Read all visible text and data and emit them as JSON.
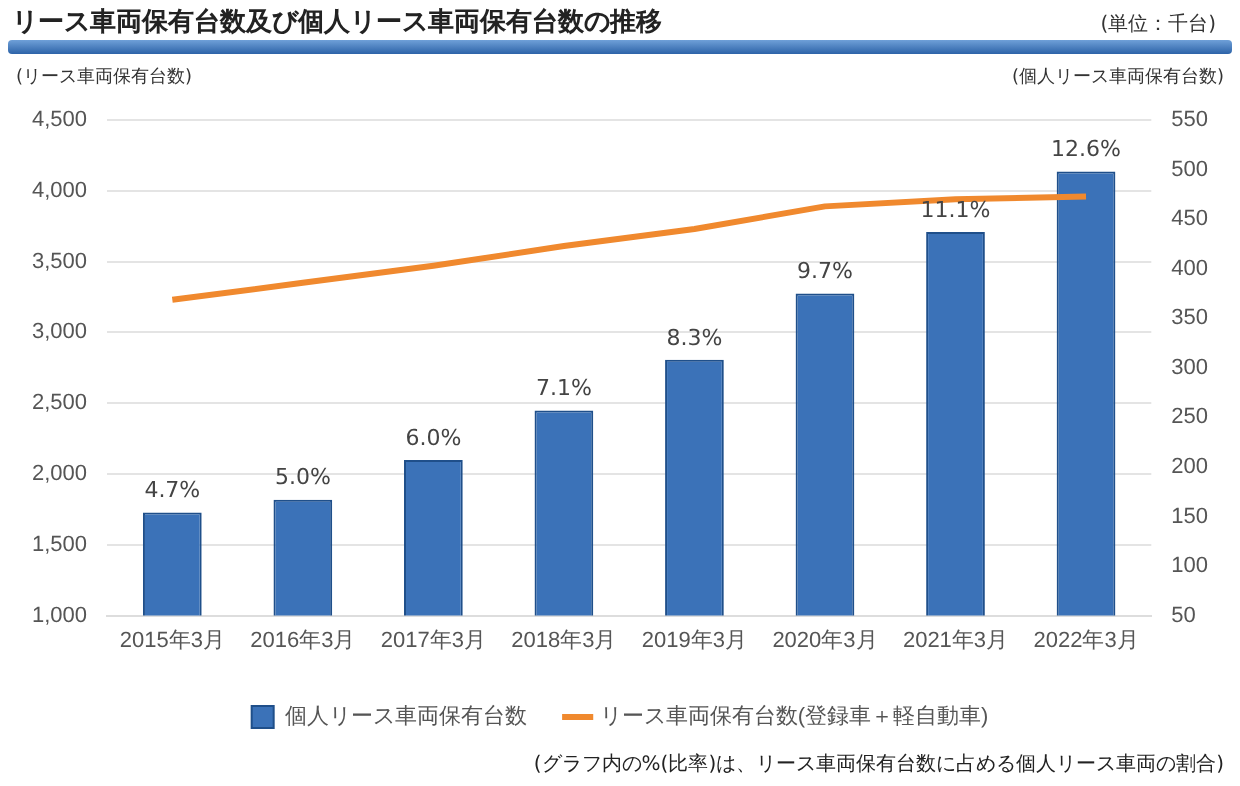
{
  "chart_data": {
    "type": "bar",
    "title": "リース車両保有台数及び個人リース車両保有台数の推移",
    "ylabel": "(リース車両保有台数)",
    "y2label": "(個人リース車両保有台数)",
    "annotations": [
      "(単位：千台)",
      "(グラフ内の%(比率)は、リース車両保有台数に占める個人リース車両の割合)",
      "4.7%",
      "5.0%",
      "6.0%",
      "7.1%",
      "8.3%",
      "9.7%",
      "11.1%",
      "12.6%"
    ],
    "categories": [
      "2015年3月",
      "2016年3月",
      "2017年3月",
      "2018年3月",
      "2019年3月",
      "2020年3月",
      "2021年3月",
      "2022年3月"
    ],
    "series": [
      {
        "name": "個人リース車両保有台数",
        "axis": "y2",
        "color": "#3b72b8",
        "values": [
          154,
          167,
          207,
          257,
          308,
          375,
          437,
          498
        ]
      },
      {
        "name": "リース車両保有台数(登録車＋軽自動車)",
        "type": "line",
        "axis": "y",
        "color": "#f0892e",
        "values": [
          3230,
          3350,
          3470,
          3610,
          3730,
          3890,
          3940,
          3960
        ]
      }
    ],
    "ylim": [
      1000,
      4500
    ],
    "yticks": [
      {
        "value": 1000,
        "label": "1,000"
      },
      {
        "value": 1500,
        "label": "1,500"
      },
      {
        "value": 2000,
        "label": "2,000"
      },
      {
        "value": 2500,
        "label": "2,500"
      },
      {
        "value": 3000,
        "label": "3,000"
      },
      {
        "value": 3500,
        "label": "3,500"
      },
      {
        "value": 4000,
        "label": "4,000"
      },
      {
        "value": 4500,
        "label": "4,500"
      }
    ],
    "y2lim": [
      50,
      550
    ],
    "y2ticks": [
      50,
      100,
      150,
      200,
      250,
      300,
      350,
      400,
      450,
      500,
      550
    ],
    "grid": "y",
    "legend": "bottom",
    "marker": "none",
    "line_style": "solid"
  }
}
